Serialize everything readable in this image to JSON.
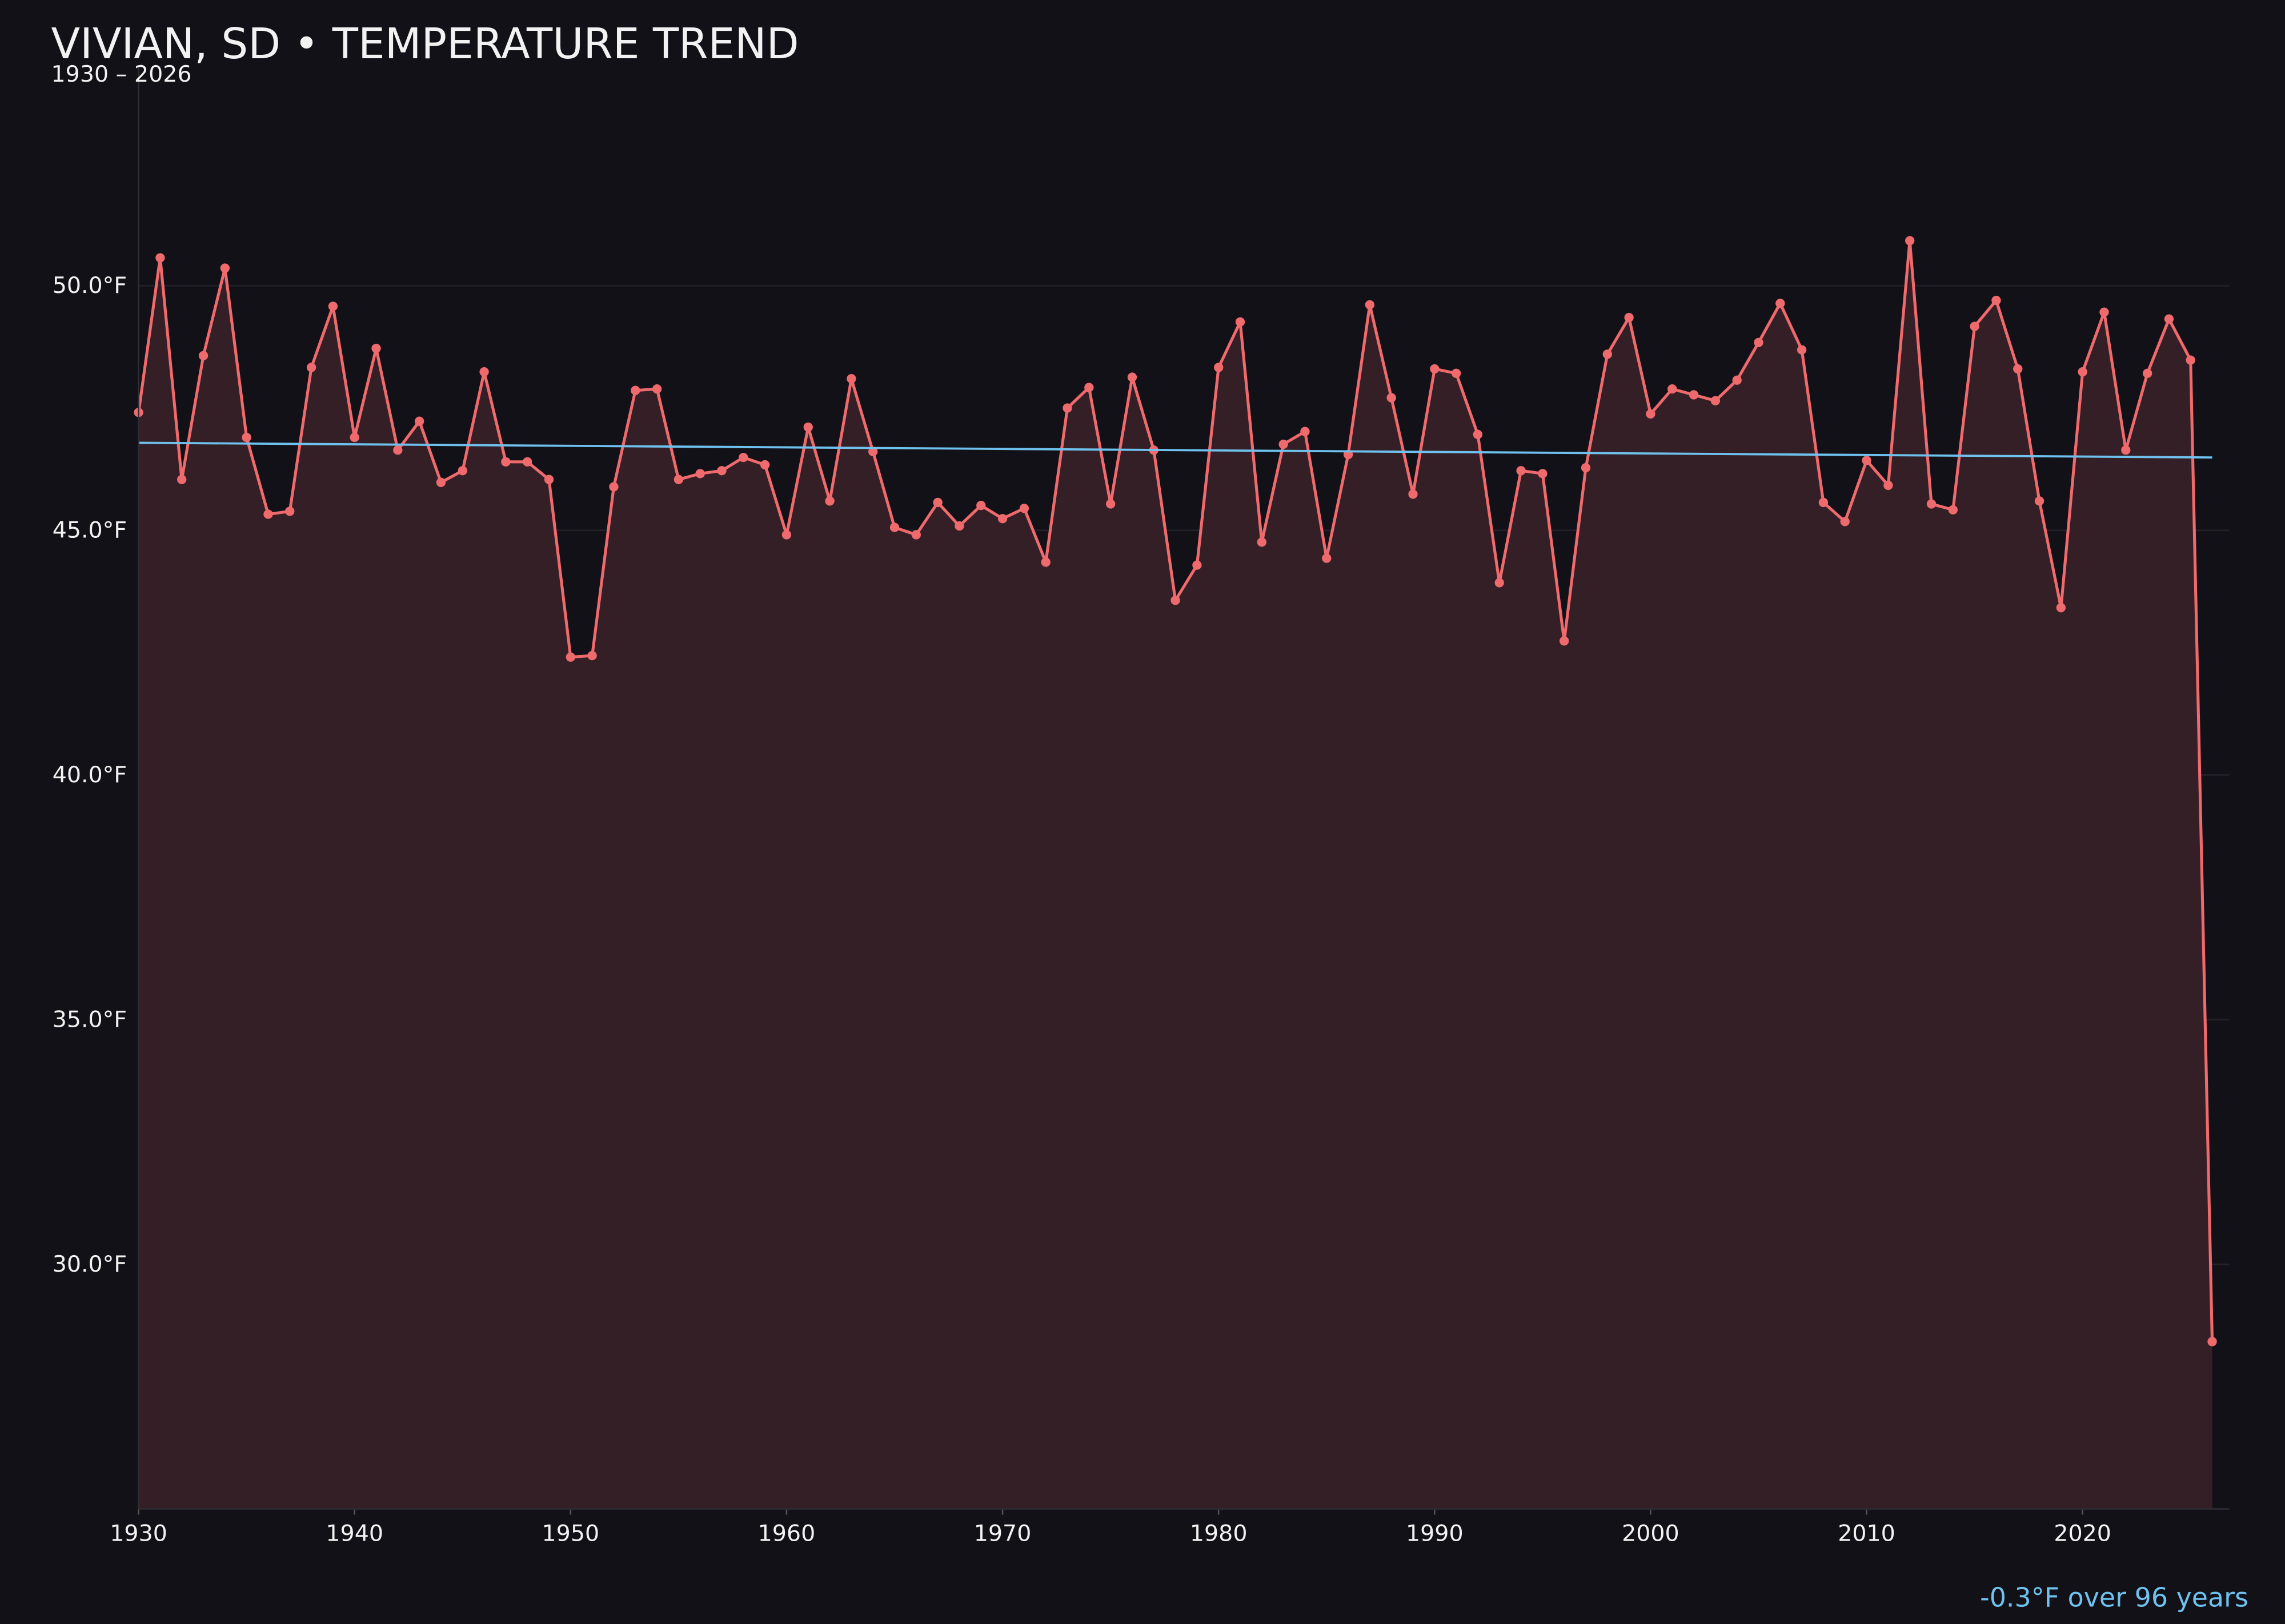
{
  "chart_data": {
    "type": "line",
    "title": "VIVIAN, SD • TEMPERATURE TREND",
    "subtitle": "1930 – 2026",
    "annotation": "-0.3°F over 96 years",
    "x": [
      1930,
      1931,
      1932,
      1933,
      1934,
      1935,
      1936,
      1937,
      1938,
      1939,
      1940,
      1941,
      1942,
      1943,
      1944,
      1945,
      1946,
      1947,
      1948,
      1949,
      1950,
      1951,
      1952,
      1953,
      1954,
      1955,
      1956,
      1957,
      1958,
      1959,
      1960,
      1961,
      1962,
      1963,
      1964,
      1965,
      1966,
      1967,
      1968,
      1969,
      1970,
      1971,
      1972,
      1973,
      1974,
      1975,
      1976,
      1977,
      1978,
      1979,
      1980,
      1981,
      1982,
      1983,
      1984,
      1985,
      1986,
      1987,
      1988,
      1989,
      1990,
      1991,
      1992,
      1993,
      1994,
      1995,
      1996,
      1997,
      1998,
      1999,
      2000,
      2001,
      2002,
      2003,
      2004,
      2005,
      2006,
      2007,
      2008,
      2009,
      2010,
      2011,
      2012,
      2013,
      2014,
      2015,
      2016,
      2017,
      2018,
      2019,
      2020,
      2021,
      2022,
      2023,
      2024,
      2025,
      2026
    ],
    "series": [
      {
        "color": "#ef6a6c",
        "fill": "#351f26",
        "values": [
          47.41,
          50.57,
          46.04,
          48.57,
          50.36,
          46.9,
          45.33,
          45.39,
          48.33,
          49.58,
          46.9,
          48.72,
          46.64,
          47.23,
          45.98,
          46.22,
          48.24,
          46.4,
          46.4,
          46.04,
          42.41,
          42.44,
          45.89,
          47.86,
          47.89,
          46.04,
          46.16,
          46.22,
          46.49,
          46.34,
          44.91,
          47.11,
          45.6,
          48.1,
          46.61,
          45.06,
          44.91,
          45.57,
          45.09,
          45.51,
          45.24,
          45.45,
          44.35,
          47.5,
          47.92,
          45.54,
          48.13,
          46.64,
          43.57,
          44.29,
          48.33,
          49.26,
          44.76,
          46.76,
          47.02,
          44.43,
          46.55,
          49.61,
          47.71,
          45.74,
          48.3,
          48.21,
          46.96,
          43.93,
          46.22,
          46.16,
          42.74,
          46.28,
          48.6,
          49.35,
          47.38,
          47.89,
          47.77,
          47.65,
          48.07,
          48.84,
          49.64,
          48.69,
          45.57,
          45.18,
          46.43,
          45.92,
          50.92,
          45.54,
          45.42,
          49.17,
          49.7,
          48.3,
          45.6,
          43.42,
          48.24,
          49.46,
          46.64,
          48.21,
          49.32,
          48.48,
          28.42
        ]
      }
    ],
    "trend": {
      "color": "#6fc1ee",
      "x": [
        1930,
        2026
      ],
      "values": [
        46.79,
        46.49
      ]
    },
    "xlim": [
      1930,
      2026.8
    ],
    "xticks": [
      1930,
      1940,
      1950,
      1960,
      1970,
      1980,
      1990,
      2000,
      2010,
      2020
    ],
    "ylim": [
      25,
      54.5
    ],
    "yticks": [
      {
        "value": 30,
        "label": "30.0°F"
      },
      {
        "value": 35,
        "label": "35.0°F"
      },
      {
        "value": 40,
        "label": "40.0°F"
      },
      {
        "value": 45,
        "label": "45.0°F"
      },
      {
        "value": 50,
        "label": "50.0°F"
      }
    ],
    "grid": true
  }
}
